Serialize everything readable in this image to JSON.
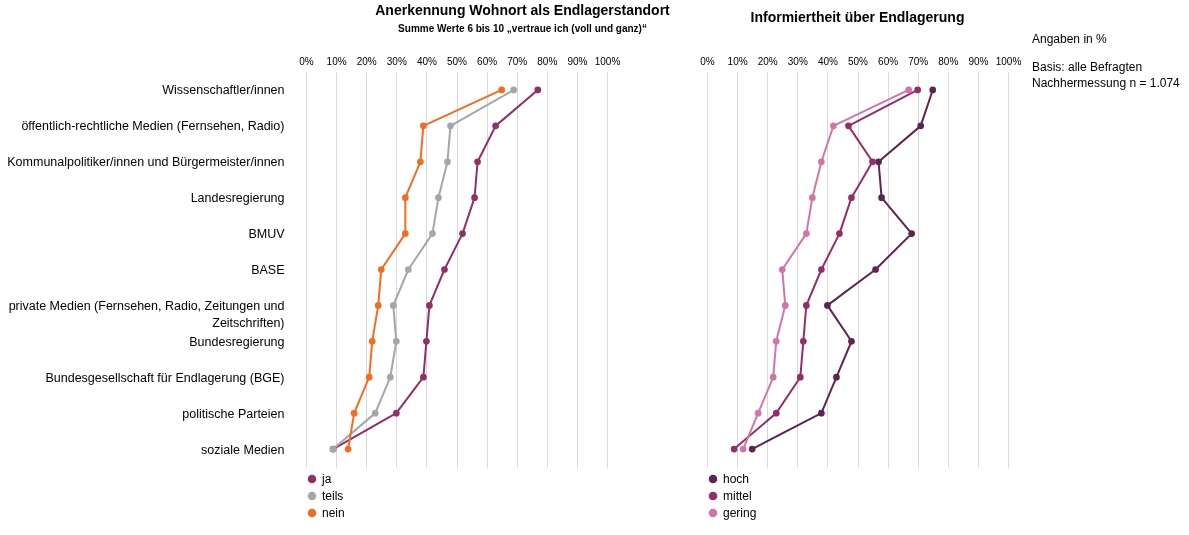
{
  "chart_data": [
    {
      "type": "line",
      "title": "Anerkennung Wohnort als Endlagerstandort",
      "subtitle": "Summe Werte 6 bis 10 „vertraue ich (voll und ganz)“",
      "orientation": "horizontal",
      "categories": [
        "Wissenschaftler/innen",
        "öffentlich-rechtliche Medien (Fernsehen, Radio)",
        "Kommunalpolitiker/innen und Bürgermeister/innen",
        "Landesregierung",
        "BMUV",
        "BASE",
        "private Medien (Fernsehen, Radio, Zeitungen und Zeitschriften)",
        "Bundesregierung",
        "Bundesgesellschaft für Endlagerung (BGE)",
        "politische Parteien",
        "soziale Medien"
      ],
      "series": [
        {
          "name": "ja",
          "color": "#913068",
          "values": [
            77,
            63,
            57,
            56,
            52,
            46,
            41,
            40,
            39,
            30,
            9
          ]
        },
        {
          "name": "teils",
          "color": "#a6a6a6",
          "values": [
            69,
            48,
            47,
            44,
            42,
            34,
            29,
            30,
            28,
            23,
            9
          ]
        },
        {
          "name": "nein",
          "color": "#f26d21",
          "values": [
            65,
            39,
            38,
            33,
            33,
            25,
            24,
            22,
            21,
            16,
            14
          ]
        }
      ],
      "xlim": [
        0,
        100
      ],
      "xticks": [
        {
          "value": 0,
          "label": "0%"
        },
        {
          "value": 10,
          "label": "10%"
        },
        {
          "value": 20,
          "label": "20%"
        },
        {
          "value": 30,
          "label": "30%"
        },
        {
          "value": 40,
          "label": "40%"
        },
        {
          "value": 50,
          "label": "50%"
        },
        {
          "value": 60,
          "label": "60%"
        },
        {
          "value": 70,
          "label": "70%"
        },
        {
          "value": 80,
          "label": "80%"
        },
        {
          "value": 90,
          "label": "90%"
        },
        {
          "value": 100,
          "label": "100%"
        }
      ],
      "grid": "x",
      "legend": "bottom",
      "marker": "circle",
      "line_style": "solid"
    },
    {
      "type": "line",
      "title": "Informiertheit über Endlagerung",
      "orientation": "horizontal",
      "series": [
        {
          "name": "hoch",
          "color": "#5e2552",
          "values": [
            75,
            71,
            57,
            58,
            68,
            56,
            40,
            48,
            43,
            38,
            15
          ]
        },
        {
          "name": "mittel",
          "color": "#962c68",
          "values": [
            70,
            47,
            55,
            48,
            44,
            38,
            33,
            32,
            31,
            23,
            9
          ]
        },
        {
          "name": "gering",
          "color": "#d374a9",
          "values": [
            67,
            42,
            38,
            35,
            33,
            25,
            26,
            23,
            22,
            17,
            12
          ]
        }
      ],
      "xlim": [
        0,
        100
      ],
      "xticks": [
        {
          "value": 0,
          "label": "0%"
        },
        {
          "value": 10,
          "label": "10%"
        },
        {
          "value": 20,
          "label": "20%"
        },
        {
          "value": 30,
          "label": "30%"
        },
        {
          "value": 40,
          "label": "40%"
        },
        {
          "value": 50,
          "label": "50%"
        },
        {
          "value": 60,
          "label": "60%"
        },
        {
          "value": 70,
          "label": "70%"
        },
        {
          "value": 80,
          "label": "80%"
        },
        {
          "value": 90,
          "label": "90%"
        },
        {
          "value": 100,
          "label": "100%"
        }
      ],
      "grid": "x",
      "legend": "bottom",
      "marker": "circle",
      "line_style": "solid",
      "tick_labels": "x",
      "annotations": [
        "Angaben in %",
        "Basis: alle Befragten",
        "Nachhermessung n = 1.074"
      ]
    }
  ]
}
